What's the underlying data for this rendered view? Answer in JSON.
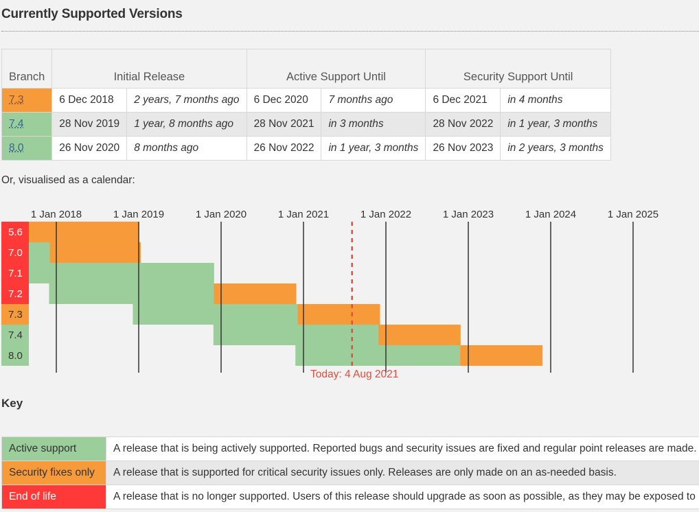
{
  "title": "Currently Supported Versions",
  "table": {
    "headers": {
      "branch": "Branch",
      "initial_release": "Initial Release",
      "active_support": "Active Support Until",
      "security_support": "Security Support Until"
    },
    "rows": [
      {
        "branch": "7.3",
        "status": "security",
        "initial_date": "6 Dec 2018",
        "initial_rel": "2 years, 7 months ago",
        "active_date": "6 Dec 2020",
        "active_rel": "7 months ago",
        "security_date": "6 Dec 2021",
        "security_rel": "in 4 months"
      },
      {
        "branch": "7.4",
        "status": "active",
        "initial_date": "28 Nov 2019",
        "initial_rel": "1 year, 8 months ago",
        "active_date": "28 Nov 2021",
        "active_rel": "in 3 months",
        "security_date": "28 Nov 2022",
        "security_rel": "in 1 year, 3 months"
      },
      {
        "branch": "8.0",
        "status": "active",
        "initial_date": "26 Nov 2020",
        "initial_rel": "8 months ago",
        "active_date": "26 Nov 2022",
        "active_rel": "in 1 year, 3 months",
        "security_date": "26 Nov 2023",
        "security_rel": "in 2 years, 3 months"
      }
    ]
  },
  "calendar_intro": "Or, visualised as a calendar:",
  "calendar": {
    "years": [
      "1 Jan 2018",
      "1 Jan 2019",
      "1 Jan 2020",
      "1 Jan 2021",
      "1 Jan 2022",
      "1 Jan 2023",
      "1 Jan 2024",
      "1 Jan 2025"
    ],
    "today_label": "Today: 4 Aug 2021",
    "branches": [
      {
        "branch": "5.6",
        "status": "eol",
        "release": "2014-08-28",
        "active_end": "2017-01-19",
        "security_end": "2018-12-31"
      },
      {
        "branch": "7.0",
        "status": "eol",
        "release": "2015-12-03",
        "active_end": "2017-12-03",
        "security_end": "2019-01-10"
      },
      {
        "branch": "7.1",
        "status": "eol",
        "release": "2016-12-01",
        "active_end": "2019-12-01",
        "security_end": "2019-12-01"
      },
      {
        "branch": "7.2",
        "status": "eol",
        "release": "2017-11-30",
        "active_end": "2019-11-30",
        "security_end": "2020-11-30"
      },
      {
        "branch": "7.3",
        "status": "security",
        "release": "2018-12-06",
        "active_end": "2020-12-06",
        "security_end": "2021-12-06"
      },
      {
        "branch": "7.4",
        "status": "active",
        "release": "2019-11-28",
        "active_end": "2021-11-28",
        "security_end": "2022-11-28"
      },
      {
        "branch": "8.0",
        "status": "active",
        "release": "2020-11-26",
        "active_end": "2022-11-26",
        "security_end": "2023-11-26"
      }
    ],
    "today": "2021-08-04"
  },
  "key": {
    "title": "Key",
    "items": [
      {
        "label": "Active support",
        "class": "k-active",
        "description": "A release that is being actively supported. Reported bugs and security issues are fixed and regular point releases are made."
      },
      {
        "label": "Security fixes only",
        "class": "k-security",
        "description": "A release that is supported for critical security issues only. Releases are only made on an as-needed basis."
      },
      {
        "label": "End of life",
        "class": "k-eol",
        "description": "A release that is no longer supported. Users of this release should upgrade as soon as possible, as they may be exposed to unpatched security vulnerabilities."
      }
    ]
  },
  "colors": {
    "active": "#9cce9c",
    "security": "#f79a39",
    "eol": "#ff3838",
    "today": "#e74c3c"
  }
}
